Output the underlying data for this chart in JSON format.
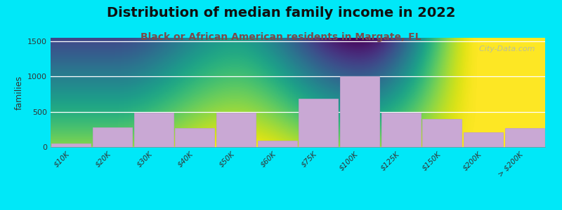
{
  "title": "Distribution of median family income in 2022",
  "subtitle": "Black or African American residents in Margate, FL",
  "ylabel": "families",
  "categories": [
    "$10K",
    "$20K",
    "$30K",
    "$40K",
    "$50K",
    "$60K",
    "$75K",
    "$100K",
    "$125K",
    "$150K",
    "$200K",
    "> $200K"
  ],
  "values": [
    50,
    280,
    490,
    270,
    490,
    90,
    690,
    1000,
    490,
    400,
    210,
    270
  ],
  "bar_color": "#c9a8d4",
  "bar_edgecolor": "#c0a0cc",
  "background_outer": "#00e8f8",
  "background_inner_top": "#e0edd8",
  "background_inner_bottom": "#f8fff8",
  "title_fontsize": 14,
  "subtitle_fontsize": 10,
  "ylabel_fontsize": 9,
  "yticks": [
    0,
    500,
    1000,
    1500
  ],
  "ylim": [
    0,
    1550
  ],
  "watermark": "  City-Data.com"
}
